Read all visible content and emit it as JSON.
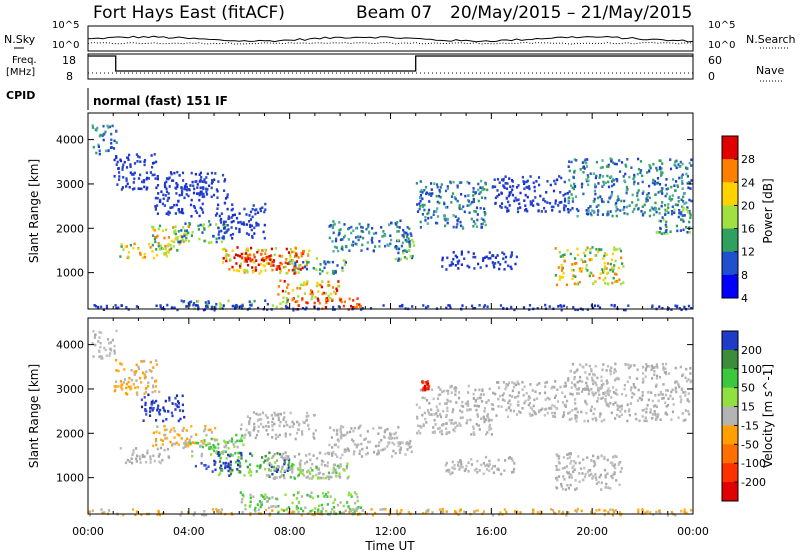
{
  "header": {
    "station": "Fort Hays East (fitACF)",
    "beam": "Beam 07",
    "dates": "20/May/2015 – 21/May/2015"
  },
  "panel_labels": {
    "nsky": "N.Sky",
    "nsearch": "N.Search",
    "freq_line1": "Freq.",
    "freq_line2": "[MHz]",
    "nave": "Nave",
    "cpid": "CPID",
    "cpid_value": "normal (fast) 151 IF",
    "noise_tick_top": "10^5",
    "noise_tick_bottom": "10^0",
    "freq_tick_top": "18",
    "freq_tick_bottom": "8",
    "nave_tick_top": "60",
    "nave_tick_bottom": "0"
  },
  "chart_data": [
    {
      "type": "heatmap",
      "panel": "power",
      "ylabel": "Slant Range [km]",
      "xlim": [
        0,
        24
      ],
      "ylim": [
        180,
        4600
      ],
      "yticks": [
        1000,
        2000,
        3000,
        4000
      ],
      "colorbar": {
        "label": "Power [dB]",
        "ticks": [
          "28",
          "24",
          "20",
          "16",
          "12",
          "8",
          "4"
        ],
        "colors": [
          "#e00000",
          "#ff8000",
          "#ffd200",
          "#a0e040",
          "#30a060",
          "#2050d0",
          "#0000ff"
        ]
      },
      "regions": [
        {
          "t0": 0.1,
          "t1": 1.1,
          "r0": 3700,
          "r1": 4350,
          "level": "weak-medium"
        },
        {
          "t0": 1.0,
          "t1": 2.8,
          "r0": 2900,
          "r1": 3700,
          "level": "weak"
        },
        {
          "t0": 2.6,
          "t1": 4.6,
          "r0": 2300,
          "r1": 3000,
          "level": "weak"
        },
        {
          "t0": 1.2,
          "t1": 3.2,
          "r0": 1350,
          "r1": 1700,
          "level": "medium-strong"
        },
        {
          "t0": 2.5,
          "t1": 4.0,
          "r0": 1500,
          "r1": 2100,
          "level": "medium-strong"
        },
        {
          "t0": 3.5,
          "t1": 5.5,
          "r0": 1700,
          "r1": 2200,
          "level": "medium"
        },
        {
          "t0": 5.0,
          "t1": 7.0,
          "r0": 1800,
          "r1": 2600,
          "level": "weak"
        },
        {
          "t0": 5.3,
          "t1": 8.8,
          "r0": 1000,
          "r1": 1600,
          "level": "strong"
        },
        {
          "t0": 6.0,
          "t1": 8.5,
          "r0": 1100,
          "r1": 1500,
          "level": "very-strong"
        },
        {
          "t0": 7.8,
          "t1": 10.2,
          "r0": 1000,
          "r1": 1350,
          "level": "medium"
        },
        {
          "t0": 7.5,
          "t1": 10.0,
          "r0": 400,
          "r1": 850,
          "level": "strong"
        },
        {
          "t0": 8.0,
          "t1": 10.8,
          "r0": 180,
          "r1": 450,
          "level": "very-strong"
        },
        {
          "t0": 3.6,
          "t1": 8.0,
          "r0": 200,
          "r1": 400,
          "level": "medium"
        },
        {
          "t0": 3.0,
          "t1": 5.5,
          "r0": 2700,
          "r1": 3300,
          "level": "weak"
        },
        {
          "t0": 9.5,
          "t1": 12.8,
          "r0": 1500,
          "r1": 2200,
          "level": "weak-medium"
        },
        {
          "t0": 12.0,
          "t1": 12.9,
          "r0": 1300,
          "r1": 1800,
          "level": "medium"
        },
        {
          "t0": 13.0,
          "t1": 15.8,
          "r0": 2000,
          "r1": 3100,
          "level": "weak-medium"
        },
        {
          "t0": 14.0,
          "t1": 17.0,
          "r0": 1100,
          "r1": 1500,
          "level": "weak"
        },
        {
          "t0": 16.0,
          "t1": 19.0,
          "r0": 2400,
          "r1": 3200,
          "level": "weak"
        },
        {
          "t0": 18.5,
          "t1": 21.2,
          "r0": 750,
          "r1": 1600,
          "level": "medium-strong"
        },
        {
          "t0": 19.0,
          "t1": 23.9,
          "r0": 2300,
          "r1": 3600,
          "level": "weak-medium"
        },
        {
          "t0": 22.5,
          "t1": 23.9,
          "r0": 1900,
          "r1": 2500,
          "level": "medium"
        },
        {
          "t0": 0.0,
          "t1": 24.0,
          "r0": 180,
          "r1": 300,
          "level": "weak"
        }
      ]
    },
    {
      "type": "heatmap",
      "panel": "velocity",
      "ylabel": "Slant Range [km]",
      "xlabel": "Time UT",
      "xlim": [
        0,
        24
      ],
      "ylim": [
        180,
        4600
      ],
      "yticks": [
        1000,
        2000,
        3000,
        4000
      ],
      "xticks": [
        "00:00",
        "04:00",
        "08:00",
        "12:00",
        "16:00",
        "20:00",
        "00:00"
      ],
      "colorbar": {
        "label": "Velocity [m s^-1]",
        "ticks": [
          "200",
          "100",
          "50",
          "15",
          "-15",
          "-50",
          "-100",
          "-200"
        ],
        "colors": [
          "#1e3cc8",
          "#3c8c3c",
          "#3cc83c",
          "#90e040",
          "#b4b4b4",
          "#ffa000",
          "#ff7000",
          "#ff3000",
          "#e00000"
        ]
      },
      "regions": [
        {
          "t0": 0.1,
          "t1": 1.1,
          "r0": 3700,
          "r1": 4350,
          "level": "ground"
        },
        {
          "t0": 1.0,
          "t1": 2.8,
          "r0": 2900,
          "r1": 3700,
          "level": "negative-weak"
        },
        {
          "t0": 2.0,
          "t1": 3.8,
          "r0": 2300,
          "r1": 2900,
          "level": "positive-strong"
        },
        {
          "t0": 1.2,
          "t1": 3.2,
          "r0": 1350,
          "r1": 1700,
          "level": "ground"
        },
        {
          "t0": 2.5,
          "t1": 5.0,
          "r0": 1700,
          "r1": 2200,
          "level": "negative-weak"
        },
        {
          "t0": 4.0,
          "t1": 6.2,
          "r0": 1500,
          "r1": 2000,
          "level": "positive-weak"
        },
        {
          "t0": 4.2,
          "t1": 6.0,
          "r0": 1150,
          "r1": 1450,
          "level": "positive-strong"
        },
        {
          "t0": 5.0,
          "t1": 8.0,
          "r0": 1050,
          "r1": 1600,
          "level": "positive-medium"
        },
        {
          "t0": 6.0,
          "t1": 9.0,
          "r0": 1900,
          "r1": 2500,
          "level": "ground"
        },
        {
          "t0": 7.0,
          "t1": 10.0,
          "r0": 1000,
          "r1": 1600,
          "level": "ground"
        },
        {
          "t0": 8.0,
          "t1": 10.5,
          "r0": 1000,
          "r1": 1350,
          "level": "positive-weak"
        },
        {
          "t0": 6.0,
          "t1": 10.8,
          "r0": 200,
          "r1": 700,
          "level": "positive-weak"
        },
        {
          "t0": 0.0,
          "t1": 24.0,
          "r0": 180,
          "r1": 320,
          "level": "negative-weak"
        },
        {
          "t0": 9.5,
          "t1": 12.8,
          "r0": 1500,
          "r1": 2200,
          "level": "ground"
        },
        {
          "t0": 13.0,
          "t1": 16.0,
          "r0": 2000,
          "r1": 3100,
          "level": "ground"
        },
        {
          "t0": 14.0,
          "t1": 17.0,
          "r0": 1100,
          "r1": 1500,
          "level": "ground"
        },
        {
          "t0": 16.0,
          "t1": 19.0,
          "r0": 2400,
          "r1": 3200,
          "level": "ground"
        },
        {
          "t0": 18.5,
          "t1": 21.2,
          "r0": 750,
          "r1": 1600,
          "level": "ground"
        },
        {
          "t0": 19.0,
          "t1": 23.9,
          "r0": 2300,
          "r1": 3600,
          "level": "ground"
        },
        {
          "t0": 13.2,
          "t1": 13.5,
          "r0": 3000,
          "r1": 3200,
          "level": "negative-strong"
        }
      ]
    }
  ]
}
